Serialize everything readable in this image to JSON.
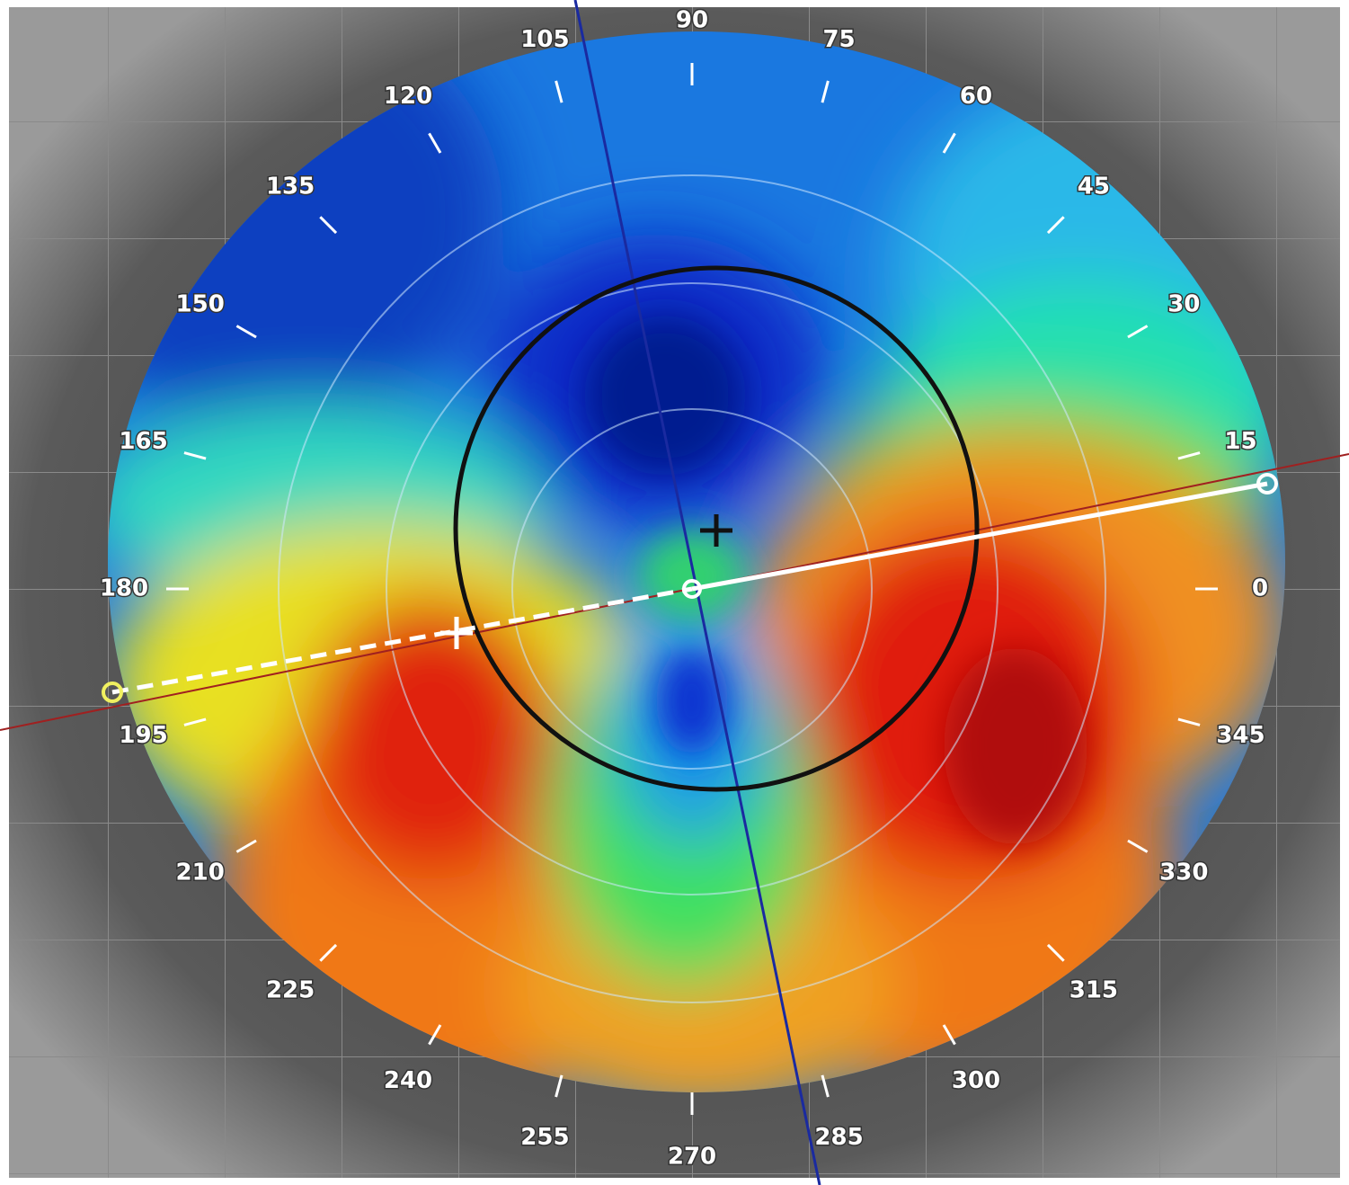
{
  "angle_labels": [
    "0",
    "15",
    "30",
    "45",
    "60",
    "75",
    "90",
    "105",
    "120",
    "135",
    "150",
    "165",
    "180",
    "195",
    "210",
    "225",
    "240",
    "255",
    "270",
    "285",
    "300",
    "315",
    "330",
    "345"
  ]
}
